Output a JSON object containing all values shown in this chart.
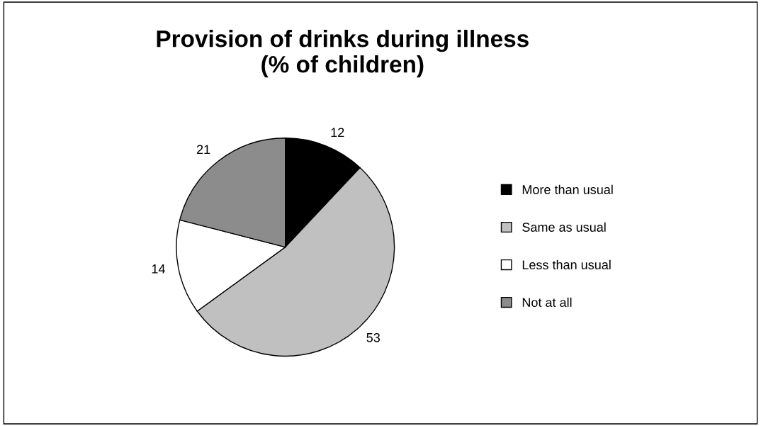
{
  "chart_data": {
    "type": "pie",
    "title": "Provision of drinks during illness\n(% of children)",
    "categories": [
      "More than usual",
      "Same as usual",
      "Less than usual",
      "Not at all"
    ],
    "values": [
      12,
      53,
      14,
      21
    ],
    "colors": [
      "#000000",
      "#c0c0c0",
      "#ffffff",
      "#8c8c8c"
    ],
    "data_labels": true,
    "legend": "right"
  }
}
